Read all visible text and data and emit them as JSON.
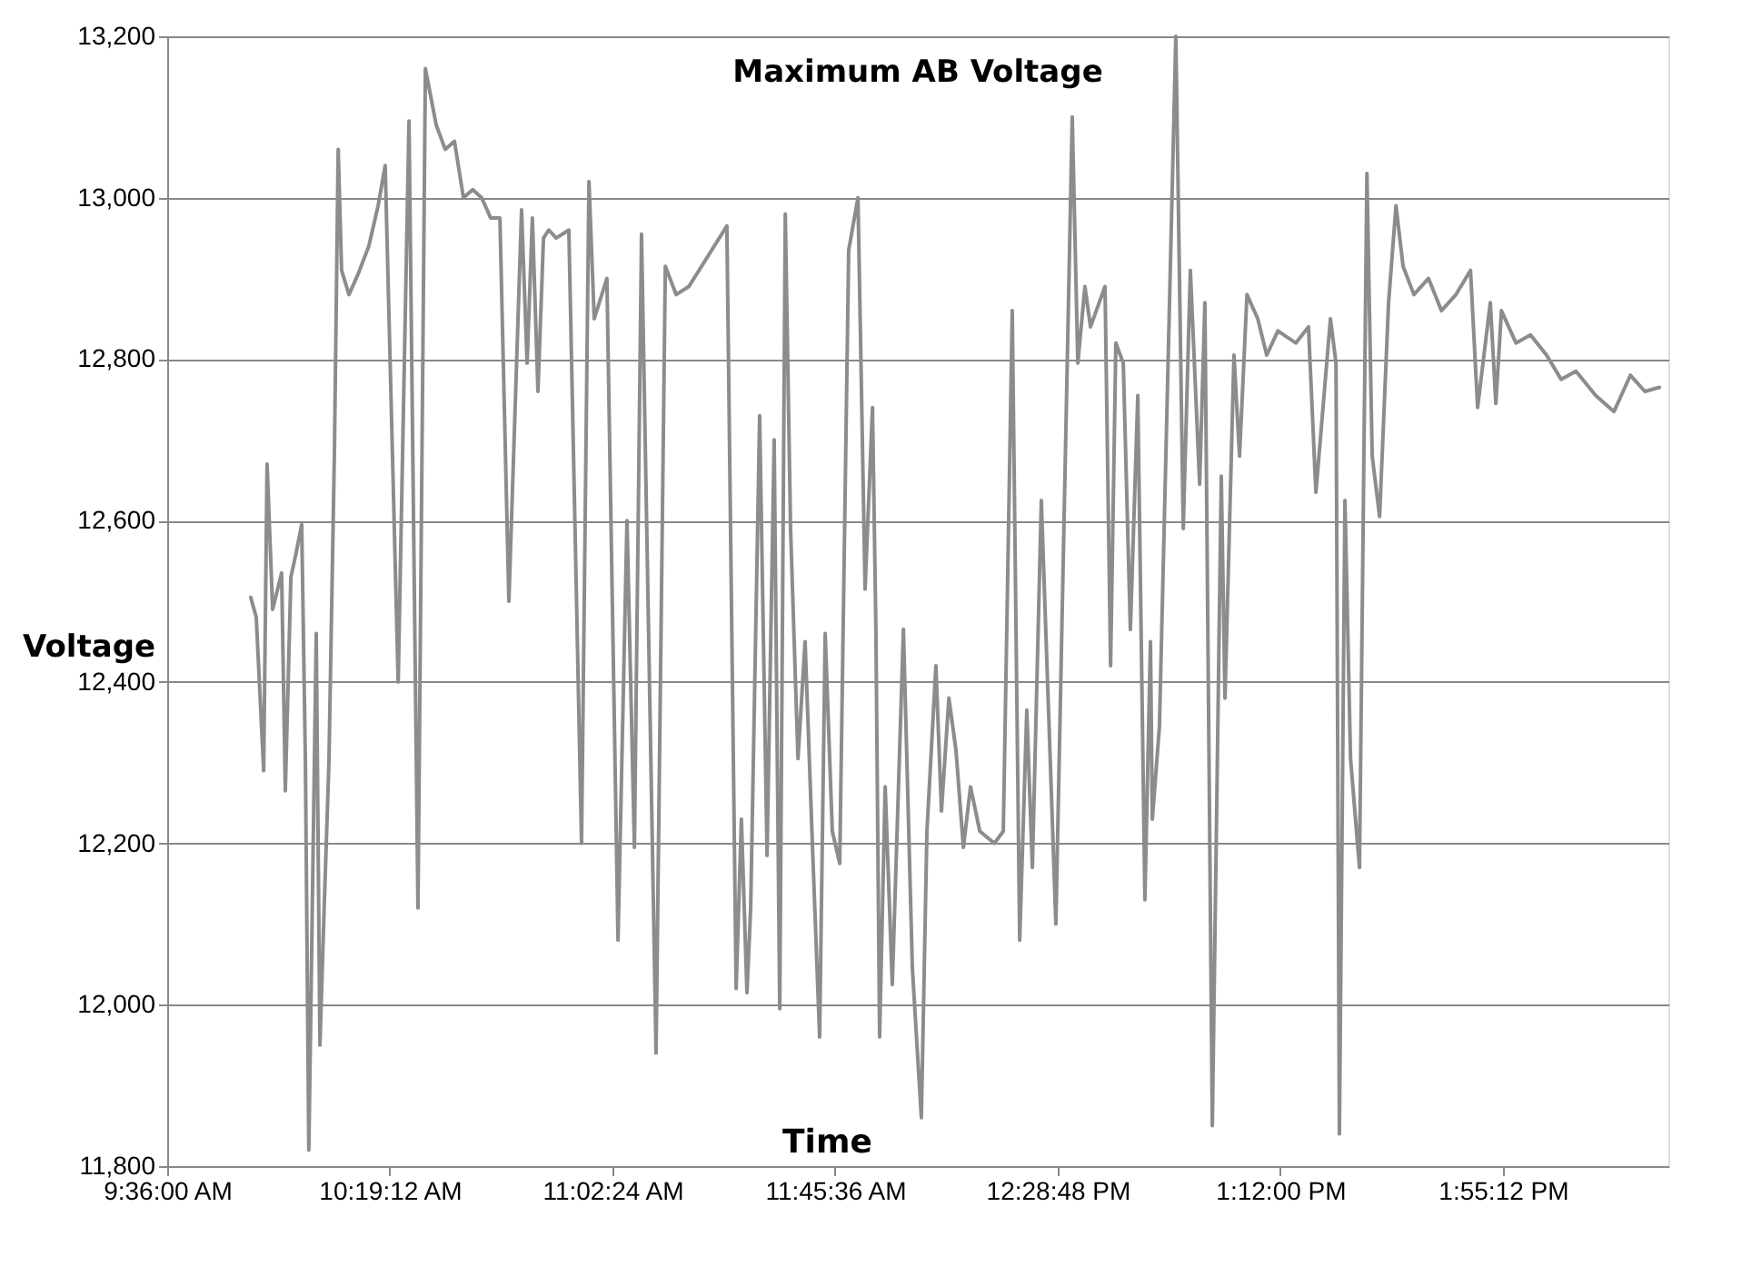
{
  "chart_data": {
    "type": "line",
    "title": "Maximum AB Voltage",
    "xlabel": "Time",
    "ylabel": "Voltage",
    "x": [
      9.87,
      9.888,
      9.912,
      9.923,
      9.941,
      9.97,
      9.982,
      10.0,
      10.017,
      10.035,
      10.047,
      10.058,
      10.082,
      10.094,
      10.106,
      10.123,
      10.141,
      10.153,
      10.164,
      10.188,
      10.217,
      10.252,
      10.282,
      10.305,
      10.347,
      10.382,
      10.411,
      10.435,
      10.47,
      10.499,
      10.529,
      10.558,
      10.588,
      10.617,
      10.646,
      10.676,
      10.705,
      10.746,
      10.764,
      10.781,
      10.799,
      10.817,
      10.834,
      10.858,
      10.899,
      10.94,
      10.964,
      10.981,
      11.022,
      11.058,
      11.087,
      11.111,
      11.134,
      11.181,
      11.211,
      11.246,
      11.287,
      11.41,
      11.44,
      11.457,
      11.475,
      11.487,
      11.516,
      11.54,
      11.563,
      11.581,
      11.599,
      11.616,
      11.64,
      11.663,
      11.687,
      11.71,
      11.728,
      11.751,
      11.775,
      11.804,
      11.834,
      11.857,
      11.881,
      11.892,
      11.904,
      11.922,
      11.945,
      11.981,
      12.01,
      12.039,
      12.057,
      12.086,
      12.104,
      12.128,
      12.151,
      12.175,
      12.198,
      12.228,
      12.275,
      12.304,
      12.333,
      12.357,
      12.38,
      12.398,
      12.427,
      12.474,
      12.527,
      12.545,
      12.568,
      12.586,
      12.633,
      12.651,
      12.668,
      12.692,
      12.715,
      12.739,
      12.762,
      12.78,
      12.786,
      12.809,
      12.862,
      12.886,
      12.909,
      12.939,
      12.956,
      12.98,
      13.009,
      13.021,
      13.05,
      13.068,
      13.092,
      13.127,
      13.156,
      13.192,
      13.25,
      13.291,
      13.315,
      13.362,
      13.38,
      13.391,
      13.409,
      13.427,
      13.456,
      13.48,
      13.497,
      13.521,
      13.55,
      13.574,
      13.597,
      13.632,
      13.679,
      13.721,
      13.768,
      13.815,
      13.838,
      13.879,
      13.897,
      13.915,
      13.962,
      14.009,
      14.061,
      14.108,
      14.156,
      14.22,
      14.279,
      14.332,
      14.379,
      14.426
    ],
    "series": [
      {
        "color": "#8c8c8c",
        "values": [
          12505,
          12480,
          12290,
          12670,
          12490,
          12535,
          12265,
          12530,
          12560,
          12595,
          12300,
          11820,
          12460,
          11950,
          12100,
          12300,
          12690,
          13060,
          12910,
          12880,
          12905,
          12940,
          12990,
          13040,
          12400,
          13095,
          12120,
          13160,
          13090,
          13060,
          13070,
          13000,
          13010,
          13000,
          12975,
          12975,
          12500,
          12985,
          12795,
          12975,
          12760,
          12950,
          12960,
          12950,
          12960,
          12200,
          13020,
          12850,
          12900,
          12080,
          12600,
          12195,
          12955,
          11940,
          12915,
          12880,
          12890,
          12965,
          12020,
          12230,
          12015,
          12120,
          12730,
          12185,
          12700,
          11995,
          12980,
          12590,
          12305,
          12450,
          12195,
          11960,
          12460,
          12215,
          12175,
          12935,
          13000,
          12515,
          12740,
          12465,
          11960,
          12270,
          12025,
          12465,
          12045,
          11860,
          12215,
          12420,
          12240,
          12380,
          12315,
          12195,
          12270,
          12215,
          12200,
          12215,
          12860,
          12080,
          12365,
          12170,
          12625,
          12100,
          13100,
          12795,
          12890,
          12840,
          12890,
          12420,
          12820,
          12795,
          12465,
          12755,
          12130,
          12450,
          12230,
          12345,
          13200,
          12590,
          12910,
          12645,
          12870,
          11850,
          12655,
          12380,
          12805,
          12680,
          12880,
          12850,
          12805,
          12835,
          12820,
          12840,
          12635,
          12850,
          12795,
          11840,
          12625,
          12305,
          12170,
          13030,
          12680,
          12605,
          12870,
          12990,
          12915,
          12880,
          12900,
          12860,
          12880,
          12910,
          12740,
          12870,
          12745,
          12860,
          12820,
          12830,
          12805,
          12775,
          12785,
          12755,
          12735,
          12780,
          12760,
          12765
        ]
      }
    ],
    "xlim": [
      9.6,
      14.455
    ],
    "xticks": [
      {
        "value": 9.6,
        "label": "9:36:00 AM"
      },
      {
        "value": 10.32,
        "label": "10:19:12 AM"
      },
      {
        "value": 11.04,
        "label": "11:02:24 AM"
      },
      {
        "value": 11.76,
        "label": "11:45:36 AM"
      },
      {
        "value": 12.48,
        "label": "12:28:48 PM"
      },
      {
        "value": 13.2,
        "label": "1:12:00 PM"
      },
      {
        "value": 13.92,
        "label": "1:55:12 PM"
      }
    ],
    "ylim": [
      11800,
      13200
    ],
    "yticks": [
      {
        "value": 11800,
        "label": "11,800"
      },
      {
        "value": 12000,
        "label": "12,000"
      },
      {
        "value": 12200,
        "label": "12,200"
      },
      {
        "value": 12400,
        "label": "12,400"
      },
      {
        "value": 12600,
        "label": "12,600"
      },
      {
        "value": 12800,
        "label": "12,800"
      },
      {
        "value": 13000,
        "label": "13,000"
      },
      {
        "value": 13200,
        "label": "13,200"
      }
    ],
    "grid": "y",
    "line_style": "solid",
    "marker": "none"
  }
}
